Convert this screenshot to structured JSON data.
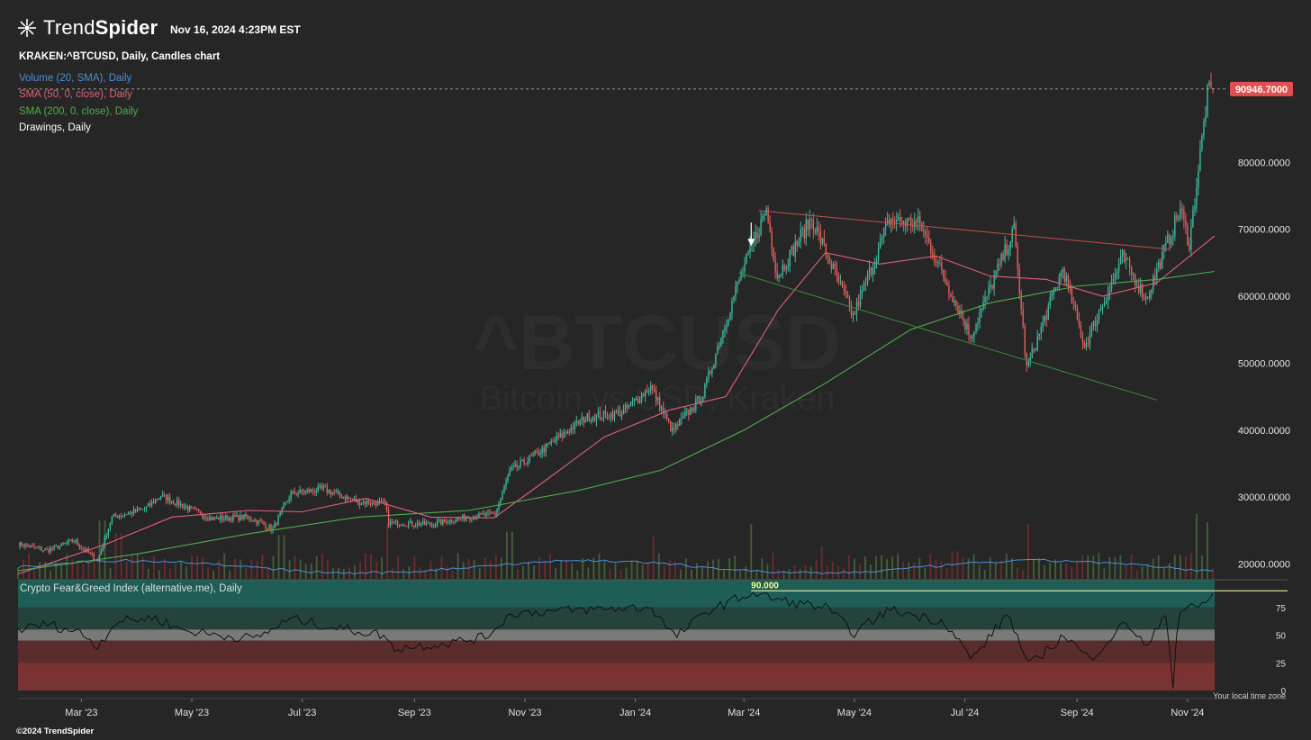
{
  "header": {
    "logo_prefix": "Trend",
    "logo_suffix": "Spider",
    "timestamp": "Nov 16, 2024 4:23PM EST",
    "symbol_line": "KRAKEN:^BTCUSD, Daily, Candles chart"
  },
  "indicators": [
    {
      "label": "Volume (20, SMA), Daily",
      "color": "#4a90d9"
    },
    {
      "label": "SMA (50, 0, close), Daily",
      "color": "#e0607a"
    },
    {
      "label": "SMA (200, 0, close), Daily",
      "color": "#4cae4c"
    },
    {
      "label": "Drawings, Daily",
      "color": "#ffffff"
    }
  ],
  "watermark": {
    "symbol": "^BTCUSD",
    "name": "Bitcoin vs USD, Kraken"
  },
  "footer": {
    "copyright": "©2024 TrendSpider",
    "timezone_note": "Your local time zone"
  },
  "chart_data": [
    {
      "type": "candlestick",
      "y_axis": {
        "side": "right",
        "ticks": [
          20000,
          30000,
          40000,
          50000,
          60000,
          70000,
          80000
        ],
        "tick_labels": [
          "20000.0000",
          "30000.0000",
          "40000.0000",
          "50000.0000",
          "60000.0000",
          "70000.0000",
          "80000.0000"
        ],
        "ylim": [
          18000,
          92000
        ]
      },
      "x_axis": {
        "labels": [
          "Mar '23",
          "May '23",
          "Jul '23",
          "Sep '23",
          "Nov '23",
          "Jan '24",
          "Mar '24",
          "May '24",
          "Jul '24",
          "Sep '24",
          "Nov '24"
        ]
      },
      "last_price": {
        "value": 90946.7,
        "label": "90946.7000",
        "color": "#e05050"
      },
      "close_path": [
        {
          "date": "2023-01-25",
          "value": 23000
        },
        {
          "date": "2023-02-10",
          "value": 22000
        },
        {
          "date": "2023-02-25",
          "value": 23500
        },
        {
          "date": "2023-03-10",
          "value": 20500
        },
        {
          "date": "2023-03-18",
          "value": 27000
        },
        {
          "date": "2023-04-05",
          "value": 28200
        },
        {
          "date": "2023-04-14",
          "value": 30200
        },
        {
          "date": "2023-04-28",
          "value": 28500
        },
        {
          "date": "2023-05-12",
          "value": 26800
        },
        {
          "date": "2023-06-01",
          "value": 27000
        },
        {
          "date": "2023-06-15",
          "value": 25200
        },
        {
          "date": "2023-06-25",
          "value": 30500
        },
        {
          "date": "2023-07-13",
          "value": 31200
        },
        {
          "date": "2023-08-01",
          "value": 29300
        },
        {
          "date": "2023-08-16",
          "value": 29000
        },
        {
          "date": "2023-08-18",
          "value": 26200
        },
        {
          "date": "2023-09-10",
          "value": 25900
        },
        {
          "date": "2023-09-30",
          "value": 27000
        },
        {
          "date": "2023-10-16",
          "value": 27500
        },
        {
          "date": "2023-10-24",
          "value": 33800
        },
        {
          "date": "2023-11-10",
          "value": 36800
        },
        {
          "date": "2023-12-05",
          "value": 41900
        },
        {
          "date": "2023-12-25",
          "value": 42600
        },
        {
          "date": "2024-01-10",
          "value": 46500
        },
        {
          "date": "2024-01-22",
          "value": 39800
        },
        {
          "date": "2024-02-08",
          "value": 45300
        },
        {
          "date": "2024-02-15",
          "value": 51500
        },
        {
          "date": "2024-02-28",
          "value": 62500
        },
        {
          "date": "2024-03-14",
          "value": 73000
        },
        {
          "date": "2024-03-20",
          "value": 63000
        },
        {
          "date": "2024-04-08",
          "value": 71600
        },
        {
          "date": "2024-05-01",
          "value": 57000
        },
        {
          "date": "2024-05-21",
          "value": 71400
        },
        {
          "date": "2024-06-07",
          "value": 70800
        },
        {
          "date": "2024-07-05",
          "value": 54000
        },
        {
          "date": "2024-07-29",
          "value": 69900
        },
        {
          "date": "2024-08-05",
          "value": 49100
        },
        {
          "date": "2024-08-25",
          "value": 64200
        },
        {
          "date": "2024-09-06",
          "value": 52500
        },
        {
          "date": "2024-09-27",
          "value": 65800
        },
        {
          "date": "2024-10-10",
          "value": 59600
        },
        {
          "date": "2024-10-29",
          "value": 73000
        },
        {
          "date": "2024-11-03",
          "value": 67800
        },
        {
          "date": "2024-11-13",
          "value": 90200
        },
        {
          "date": "2024-11-16",
          "value": 90946
        }
      ],
      "series": [
        {
          "name": "SMA (50, 0, close)",
          "color": "#e0607a",
          "points": [
            {
              "date": "2023-01-25",
              "value": 18500
            },
            {
              "date": "2023-03-15",
              "value": 23000
            },
            {
              "date": "2023-04-20",
              "value": 27000
            },
            {
              "date": "2023-06-01",
              "value": 28000
            },
            {
              "date": "2023-07-01",
              "value": 27800
            },
            {
              "date": "2023-08-05",
              "value": 29800
            },
            {
              "date": "2023-09-10",
              "value": 27000
            },
            {
              "date": "2023-10-15",
              "value": 26900
            },
            {
              "date": "2023-11-10",
              "value": 32000
            },
            {
              "date": "2023-12-15",
              "value": 39000
            },
            {
              "date": "2024-01-20",
              "value": 43000
            },
            {
              "date": "2024-02-20",
              "value": 45000
            },
            {
              "date": "2024-03-20",
              "value": 58000
            },
            {
              "date": "2024-04-15",
              "value": 66500
            },
            {
              "date": "2024-05-15",
              "value": 64800
            },
            {
              "date": "2024-06-15",
              "value": 66000
            },
            {
              "date": "2024-07-15",
              "value": 63000
            },
            {
              "date": "2024-08-15",
              "value": 62500
            },
            {
              "date": "2024-09-15",
              "value": 60000
            },
            {
              "date": "2024-10-15",
              "value": 62000
            },
            {
              "date": "2024-11-16",
              "value": 69000
            }
          ]
        },
        {
          "name": "SMA (200, 0, close)",
          "color": "#4cae4c",
          "points": [
            {
              "date": "2023-01-25",
              "value": 19000
            },
            {
              "date": "2023-04-01",
              "value": 21500
            },
            {
              "date": "2023-06-01",
              "value": 24500
            },
            {
              "date": "2023-08-01",
              "value": 27000
            },
            {
              "date": "2023-10-01",
              "value": 28000
            },
            {
              "date": "2023-12-01",
              "value": 31000
            },
            {
              "date": "2024-01-15",
              "value": 34000
            },
            {
              "date": "2024-03-01",
              "value": 40000
            },
            {
              "date": "2024-04-15",
              "value": 47000
            },
            {
              "date": "2024-06-01",
              "value": 55000
            },
            {
              "date": "2024-07-15",
              "value": 59000
            },
            {
              "date": "2024-09-01",
              "value": 61500
            },
            {
              "date": "2024-10-15",
              "value": 62500
            },
            {
              "date": "2024-11-16",
              "value": 63700
            }
          ]
        }
      ],
      "trendlines": [
        {
          "color": "#c0504d",
          "from": {
            "date": "2024-03-09",
            "value": 72800
          },
          "to": {
            "date": "2024-10-22",
            "value": 67000
          }
        },
        {
          "color": "#3a8a3a",
          "from": {
            "date": "2024-02-27",
            "value": 63500
          },
          "to": {
            "date": "2024-10-15",
            "value": 44500
          }
        }
      ],
      "annotation": {
        "type": "down-arrow",
        "date": "2024-03-05",
        "value": 67500
      }
    },
    {
      "type": "bar",
      "name": "Volume (20, SMA)",
      "sma_color": "#4a90d9",
      "spikes": [
        {
          "date": "2023-03-12",
          "value": 3.6
        },
        {
          "date": "2023-03-22",
          "value": 2.8
        },
        {
          "date": "2023-06-20",
          "value": 2.7
        },
        {
          "date": "2023-08-17",
          "value": 3.4
        },
        {
          "date": "2023-10-24",
          "value": 2.9
        },
        {
          "date": "2024-01-11",
          "value": 2.6
        },
        {
          "date": "2024-03-05",
          "value": 3.4
        },
        {
          "date": "2024-04-13",
          "value": 2.0
        },
        {
          "date": "2024-06-25",
          "value": 1.7
        },
        {
          "date": "2024-08-05",
          "value": 3.4
        },
        {
          "date": "2024-11-06",
          "value": 4.0
        },
        {
          "date": "2024-11-12",
          "value": 3.5
        }
      ]
    },
    {
      "type": "line",
      "name": "Crypto Fear&Greed Index (alternative.me), Daily",
      "y_ticks": [
        0,
        25,
        50,
        75
      ],
      "ylim": [
        0,
        100
      ],
      "max_marker": {
        "value": 90,
        "label": "90.000"
      },
      "bands": [
        {
          "from": 75,
          "to": 100,
          "color": "#1f5e56"
        },
        {
          "from": 55,
          "to": 75,
          "color": "#24433d"
        },
        {
          "from": 45,
          "to": 55,
          "color": "#7a7a7a"
        },
        {
          "from": 25,
          "to": 45,
          "color": "#5a2c2c"
        },
        {
          "from": 0,
          "to": 25,
          "color": "#7a3232"
        }
      ],
      "points": [
        {
          "date": "2023-01-25",
          "value": 55
        },
        {
          "date": "2023-02-10",
          "value": 60
        },
        {
          "date": "2023-03-01",
          "value": 52
        },
        {
          "date": "2023-03-10",
          "value": 40
        },
        {
          "date": "2023-03-20",
          "value": 62
        },
        {
          "date": "2023-04-10",
          "value": 66
        },
        {
          "date": "2023-04-25",
          "value": 55
        },
        {
          "date": "2023-05-15",
          "value": 50
        },
        {
          "date": "2023-06-05",
          "value": 47
        },
        {
          "date": "2023-06-25",
          "value": 65
        },
        {
          "date": "2023-07-15",
          "value": 58
        },
        {
          "date": "2023-08-15",
          "value": 50
        },
        {
          "date": "2023-08-20",
          "value": 38
        },
        {
          "date": "2023-09-15",
          "value": 42
        },
        {
          "date": "2023-10-10",
          "value": 48
        },
        {
          "date": "2023-10-25",
          "value": 70
        },
        {
          "date": "2023-11-20",
          "value": 72
        },
        {
          "date": "2023-12-20",
          "value": 74
        },
        {
          "date": "2024-01-10",
          "value": 75
        },
        {
          "date": "2024-01-23",
          "value": 48
        },
        {
          "date": "2024-02-10",
          "value": 72
        },
        {
          "date": "2024-03-05",
          "value": 88
        },
        {
          "date": "2024-03-25",
          "value": 80
        },
        {
          "date": "2024-04-15",
          "value": 75
        },
        {
          "date": "2024-05-01",
          "value": 52
        },
        {
          "date": "2024-05-20",
          "value": 73
        },
        {
          "date": "2024-06-20",
          "value": 62
        },
        {
          "date": "2024-07-05",
          "value": 28
        },
        {
          "date": "2024-07-25",
          "value": 70
        },
        {
          "date": "2024-08-05",
          "value": 22
        },
        {
          "date": "2024-08-25",
          "value": 50
        },
        {
          "date": "2024-09-08",
          "value": 28
        },
        {
          "date": "2024-09-28",
          "value": 62
        },
        {
          "date": "2024-10-10",
          "value": 38
        },
        {
          "date": "2024-10-20",
          "value": 72
        },
        {
          "date": "2024-10-24",
          "value": 5
        },
        {
          "date": "2024-10-27",
          "value": 72
        },
        {
          "date": "2024-11-08",
          "value": 76
        },
        {
          "date": "2024-11-16",
          "value": 88
        }
      ]
    }
  ]
}
